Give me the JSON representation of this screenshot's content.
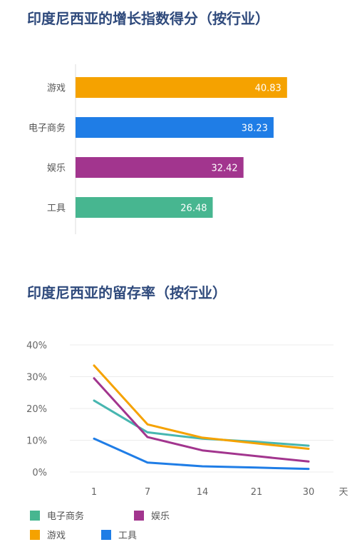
{
  "chart_data": [
    {
      "type": "bar",
      "title": "印度尼西亚的增长指数得分（按行业）",
      "categories": [
        "游戏",
        "电子商务",
        "娱乐",
        "工具"
      ],
      "values": [
        40.83,
        38.23,
        32.42,
        26.48
      ],
      "value_labels": [
        "40.83",
        "38.23",
        "32.42",
        "26.48"
      ],
      "colors": [
        "#f5a200",
        "#1f7de6",
        "#a2358e",
        "#47b690"
      ],
      "orientation": "horizontal",
      "xlim": [
        0,
        50
      ]
    },
    {
      "type": "line",
      "title": "印度尼西亚的留存率（按行业）",
      "x": [
        1,
        7,
        14,
        21,
        30
      ],
      "xticks": [
        "1",
        "7",
        "14",
        "21",
        "30"
      ],
      "xunit": "天",
      "yticks": [
        "40%",
        "30%",
        "20%",
        "10%",
        "0%"
      ],
      "ylim": [
        0,
        40
      ],
      "grid": true,
      "series": [
        {
          "name": "电子商务",
          "color": "#47b6b0",
          "values": [
            22.5,
            12.5,
            10.5,
            9.5,
            8.3
          ]
        },
        {
          "name": "娱乐",
          "color": "#a2358e",
          "values": [
            29.5,
            11.0,
            6.8,
            5.0,
            3.3
          ]
        },
        {
          "name": "游戏",
          "color": "#f5a200",
          "values": [
            33.5,
            15.0,
            10.8,
            9.0,
            7.3
          ]
        },
        {
          "name": "工具",
          "color": "#1f7de6",
          "values": [
            10.5,
            3.0,
            1.8,
            1.4,
            1.0
          ]
        }
      ],
      "legend": [
        {
          "name": "电子商务",
          "color": "#47b690"
        },
        {
          "name": "娱乐",
          "color": "#a2358e"
        },
        {
          "name": "游戏",
          "color": "#f5a200"
        },
        {
          "name": "工具",
          "color": "#1f7de6"
        }
      ]
    }
  ]
}
